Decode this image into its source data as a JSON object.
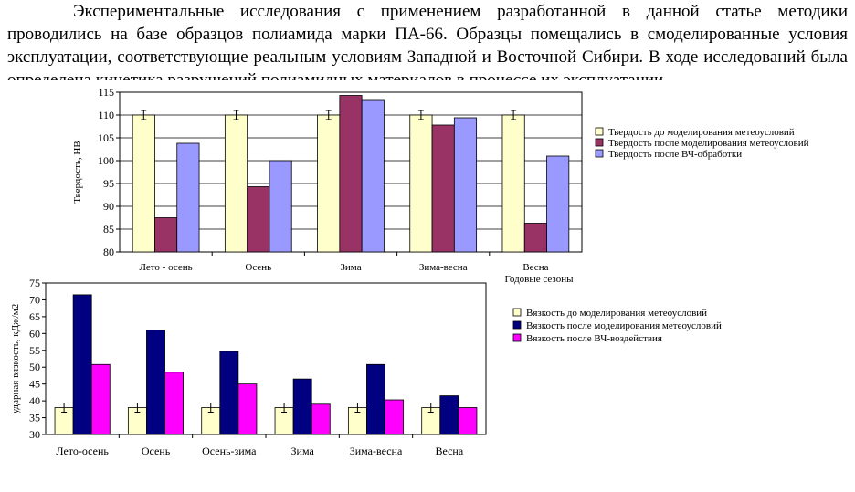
{
  "paragraph": "Экспериментальные исследования с применением разработанной в данной статье методики проводились на базе образцов полиамида марки ПА-66. Образцы помещались в смоделированные условия эксплуатации, соответствующие реальным условиям Западной и Восточной Сибири. В ходе исследований была определена кинетика разрушений полиамидных материалов в процессе их эксплуатации.",
  "chart_data": [
    {
      "type": "bar",
      "ylabel": "Твердость, НВ",
      "xlabel": "Годовые сезоны",
      "ylim": [
        80,
        115
      ],
      "yticks": [
        80,
        85,
        90,
        95,
        100,
        105,
        110,
        115
      ],
      "categories": [
        "Лето - осень",
        "Осень",
        "Зима",
        "Зима-весна",
        "Весна"
      ],
      "grid": true,
      "legend_position": "right",
      "error_bars_on_series": 0,
      "series": [
        {
          "name": "Твердость до моделирования метеоусловий",
          "color": "#FFFFCC",
          "values": [
            110,
            110,
            110,
            110,
            110
          ]
        },
        {
          "name": "Твердость после моделирования метеоусловий",
          "color": "#993366",
          "values": [
            87.5,
            94.3,
            114.3,
            107.8,
            86.3
          ]
        },
        {
          "name": "Твердость после ВЧ-обработки",
          "color": "#9999FF",
          "values": [
            103.8,
            100,
            113.2,
            109.4,
            101
          ]
        }
      ]
    },
    {
      "type": "bar",
      "ylabel": "ударная вязкость, кДж/м2",
      "ylim": [
        30,
        75
      ],
      "yticks": [
        30,
        35,
        40,
        45,
        50,
        55,
        60,
        65,
        70,
        75
      ],
      "categories": [
        "Лето-осень",
        "Осень",
        "Осень-зима",
        "Зима",
        "Зима-весна",
        "Весна"
      ],
      "grid": false,
      "legend_position": "right",
      "error_bars_on_series": 0,
      "series": [
        {
          "name": "Вязкость до моделирования метеоусловий",
          "color": "#FFFFCC",
          "values": [
            38,
            38,
            38,
            38,
            38,
            38
          ]
        },
        {
          "name": "Вязкость после моделирования метеоусловий",
          "color": "#000080",
          "values": [
            71.5,
            61,
            54.7,
            46.5,
            50.8,
            41.5
          ]
        },
        {
          "name": "Вязкость после ВЧ-воздействия",
          "color": "#FF00FF",
          "values": [
            50.8,
            48.5,
            45,
            39,
            40.3,
            38
          ]
        }
      ]
    }
  ]
}
